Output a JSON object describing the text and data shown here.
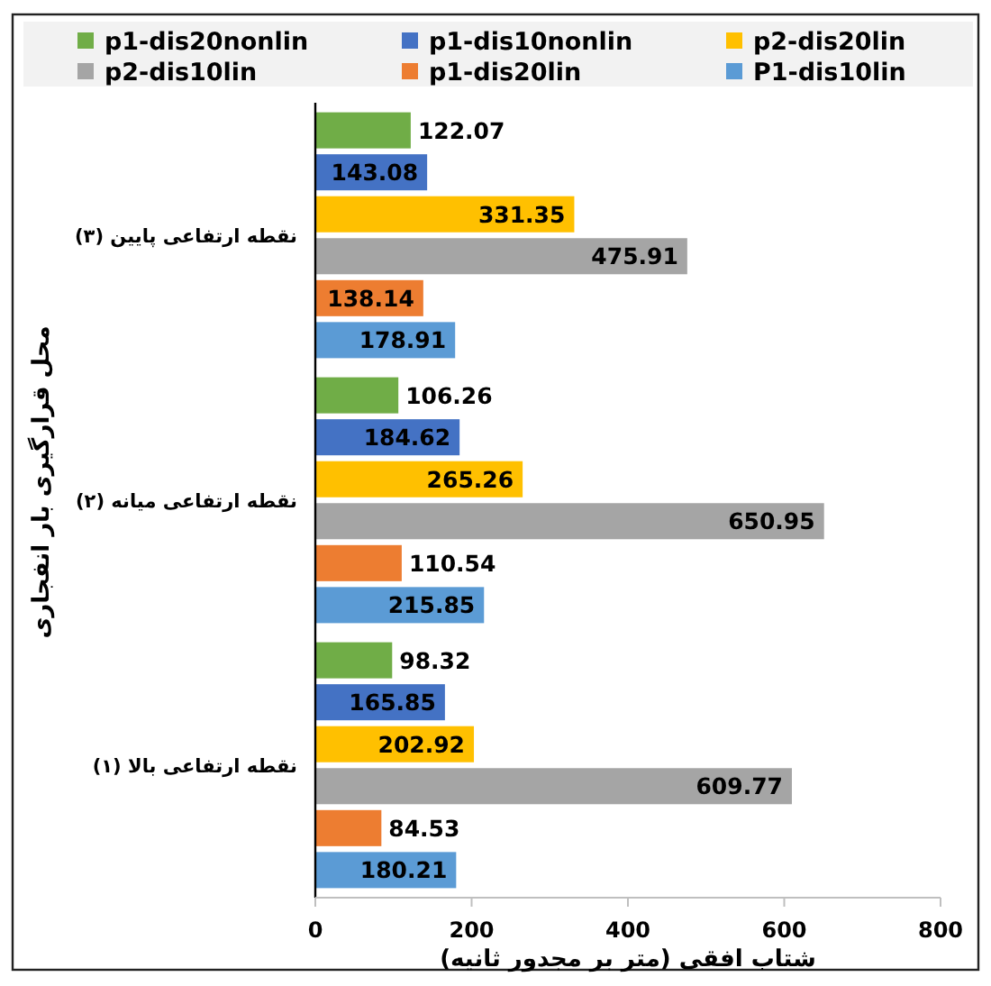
{
  "chart_data": {
    "type": "bar",
    "orientation": "horizontal",
    "xlabel": "شتاب افقی (متر بر مجدور ثانیه)",
    "ylabel": "محل قرارگیری بار انفجاری",
    "categories": [
      "نقطه ارتفاعی پایین (۳)",
      "نقطه ارتفاعی میانه (۲)",
      "نقطه ارتفاعی بالا (۱)"
    ],
    "series": [
      {
        "name": "p1-dis20nonlin",
        "color": "#70ad47",
        "values": [
          122.07,
          106.26,
          98.32
        ]
      },
      {
        "name": "p1-dis10nonlin",
        "color": "#4472c4",
        "values": [
          143.08,
          184.62,
          165.85
        ]
      },
      {
        "name": "p2-dis20lin",
        "color": "#ffc000",
        "values": [
          331.35,
          265.26,
          202.92
        ]
      },
      {
        "name": "p2-dis10lin",
        "color": "#a5a5a5",
        "values": [
          475.91,
          650.95,
          609.77
        ]
      },
      {
        "name": "p1-dis20lin",
        "color": "#ed7d31",
        "values": [
          138.14,
          110.54,
          84.53
        ]
      },
      {
        "name": "P1-dis10lin",
        "color": "#5b9bd5",
        "values": [
          178.91,
          215.85,
          180.21
        ]
      }
    ],
    "xlim": [
      0,
      800
    ],
    "xticks": [
      0,
      200,
      400,
      600,
      800
    ],
    "data_labels": true,
    "legend": "top",
    "grid": false
  }
}
